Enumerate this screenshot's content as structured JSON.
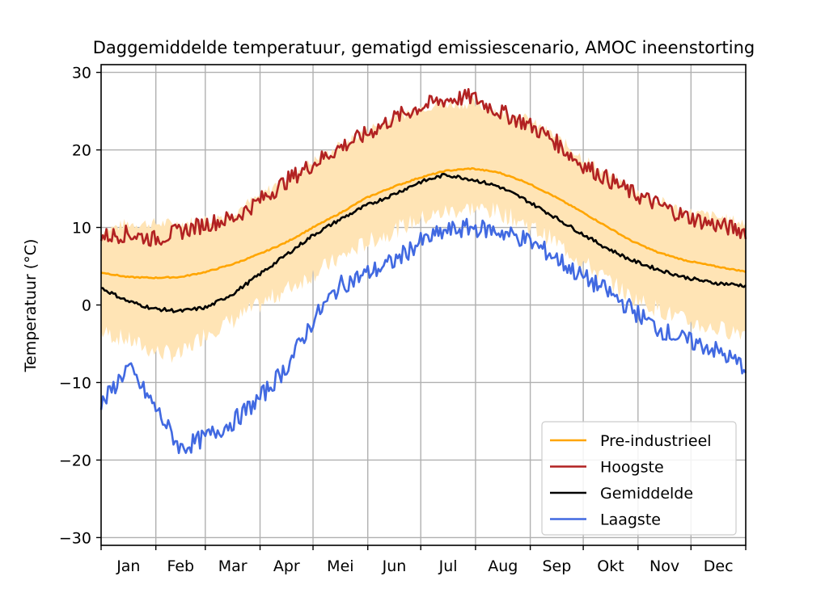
{
  "chart_data": {
    "type": "line",
    "title": "Daggemiddelde temperatuur, gematigd emissiescenario, AMOC ineenstorting",
    "xlabel": "",
    "ylabel": "Temperatuur (°C)",
    "ylim": [
      -31,
      31
    ],
    "yticks": [
      -30,
      -20,
      -10,
      0,
      10,
      20,
      30
    ],
    "ytick_labels": [
      "−30",
      "−20",
      "−10",
      "0",
      "10",
      "20",
      "30"
    ],
    "x_unit": "day of year",
    "xlim": [
      0,
      365
    ],
    "month_labels": [
      "Jan",
      "Feb",
      "Mar",
      "Apr",
      "Mei",
      "Jun",
      "Jul",
      "Aug",
      "Sep",
      "Okt",
      "Nov",
      "Dec"
    ],
    "grid": true,
    "legend_position": "lower-right",
    "series": [
      {
        "name": "Pre-industrieel",
        "color": "#ffa500",
        "x": [
          0,
          15,
          30,
          45,
          60,
          75,
          90,
          105,
          120,
          135,
          150,
          165,
          180,
          195,
          210,
          225,
          240,
          255,
          270,
          285,
          300,
          315,
          330,
          345,
          365
        ],
        "y": [
          4.2,
          3.6,
          3.5,
          3.6,
          4.3,
          5.3,
          6.6,
          8.1,
          10,
          11.8,
          13.8,
          15.2,
          16.4,
          17.3,
          17.6,
          17.1,
          15.9,
          14.2,
          12.3,
          10.3,
          8.3,
          6.8,
          5.8,
          5.1,
          4.3
        ]
      },
      {
        "name": "Hoogste",
        "color": "#b22222",
        "x": [
          0,
          15,
          30,
          45,
          60,
          75,
          90,
          105,
          120,
          135,
          150,
          165,
          180,
          195,
          210,
          225,
          240,
          255,
          270,
          285,
          300,
          315,
          330,
          345,
          365
        ],
        "y": [
          8.8,
          9.2,
          8.5,
          9.5,
          10.5,
          11.2,
          13.5,
          16,
          18.2,
          20.3,
          22,
          24,
          25.5,
          26.5,
          26.8,
          25,
          23.5,
          21.5,
          18.5,
          16.5,
          14.5,
          13,
          11.5,
          10.5,
          9.5
        ]
      },
      {
        "name": "Gemiddelde",
        "color": "#000000",
        "x": [
          0,
          15,
          30,
          45,
          60,
          75,
          90,
          105,
          120,
          135,
          150,
          165,
          180,
          195,
          210,
          225,
          240,
          255,
          270,
          285,
          300,
          315,
          330,
          345,
          365
        ],
        "y": [
          2.2,
          0.5,
          -0.5,
          -0.8,
          -0.3,
          1.5,
          4,
          6.5,
          9,
          11,
          12.8,
          14.2,
          15.8,
          16.8,
          16.2,
          15.3,
          13.6,
          11.6,
          9.5,
          7.5,
          5.8,
          4.6,
          3.6,
          2.9,
          2.5
        ]
      },
      {
        "name": "Laagste",
        "color": "#4169e1",
        "x": [
          0,
          15,
          30,
          45,
          60,
          75,
          90,
          105,
          120,
          135,
          150,
          165,
          180,
          195,
          210,
          225,
          240,
          255,
          270,
          285,
          300,
          315,
          330,
          345,
          365
        ],
        "y": [
          -13,
          -8,
          -13,
          -18.5,
          -17,
          -15,
          -12,
          -8,
          -2,
          2.5,
          4,
          5.5,
          8,
          9.5,
          10,
          9.5,
          8.5,
          6.5,
          4,
          2,
          -0.5,
          -3,
          -4.5,
          -5.5,
          -8
        ]
      }
    ],
    "band": {
      "color": "#ffe4b5",
      "x": [
        0,
        15,
        30,
        45,
        60,
        75,
        90,
        105,
        120,
        135,
        150,
        165,
        180,
        195,
        210,
        225,
        240,
        255,
        270,
        285,
        300,
        315,
        330,
        345,
        365
      ],
      "upper": [
        9.5,
        10.5,
        10.5,
        10.5,
        11,
        12,
        14,
        16.5,
        18.5,
        20.5,
        22.5,
        24,
        25.5,
        26,
        26,
        25,
        24,
        22,
        19.5,
        17,
        15,
        13.5,
        12,
        11.5,
        10.5
      ],
      "lower": [
        -3.5,
        -4.5,
        -6,
        -6.5,
        -3.5,
        -2,
        0,
        2,
        4,
        6,
        8,
        9.5,
        11,
        12,
        12.5,
        12,
        10.5,
        8.5,
        6,
        3.5,
        1,
        -0.5,
        -2,
        -3,
        -3.5
      ]
    }
  }
}
